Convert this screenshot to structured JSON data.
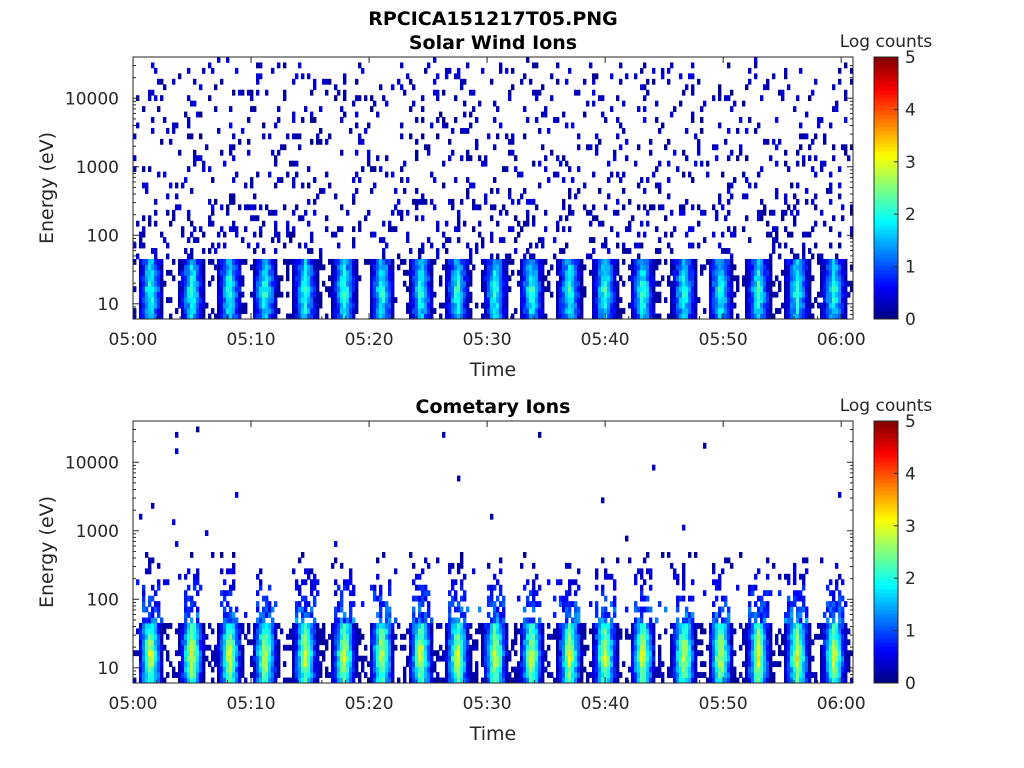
{
  "figure": {
    "title": "RPCICA151217T05.PNG"
  },
  "colors": {
    "jet_stops": [
      "#00008f",
      "#0000ff",
      "#00ffff",
      "#ffff00",
      "#ff0000",
      "#800000"
    ],
    "axis": "#262626",
    "background": "#ffffff"
  },
  "chart_data": [
    {
      "type": "heatmap",
      "title": "Solar Wind Ions",
      "xlabel": "Time",
      "ylabel": "Energy (eV)",
      "x_ticks": [
        "05:00",
        "05:10",
        "05:20",
        "05:30",
        "05:40",
        "05:50",
        "06:00"
      ],
      "y_ticks": [
        "10",
        "100",
        "1000",
        "10000"
      ],
      "y_scale": "log",
      "ylim": [
        6,
        40000
      ],
      "colorbar": {
        "label": "Log counts",
        "range": [
          0,
          5
        ],
        "ticks": [
          "0",
          "1",
          "2",
          "3",
          "4",
          "5"
        ]
      },
      "burst_times_min": [
        1.5,
        5.0,
        8.2,
        11.2,
        14.6,
        17.9,
        21.1,
        24.4,
        27.5,
        30.7,
        33.8,
        37.0,
        40.0,
        43.2,
        46.7,
        49.8,
        53.0,
        56.3,
        59.4
      ],
      "burst_peak_log_counts": 2.3,
      "burst_energy_range_eV": [
        6,
        40
      ],
      "background_energy_range_eV": [
        40,
        20000
      ],
      "background_log_counts": 0.3
    },
    {
      "type": "heatmap",
      "title": "Cometary Ions",
      "xlabel": "Time",
      "ylabel": "Energy (eV)",
      "x_ticks": [
        "05:00",
        "05:10",
        "05:20",
        "05:30",
        "05:40",
        "05:50",
        "06:00"
      ],
      "y_ticks": [
        "10",
        "100",
        "1000",
        "10000"
      ],
      "y_scale": "log",
      "ylim": [
        6,
        40000
      ],
      "colorbar": {
        "label": "Log counts",
        "range": [
          0,
          5
        ],
        "ticks": [
          "0",
          "1",
          "2",
          "3",
          "4",
          "5"
        ]
      },
      "burst_times_min": [
        1.5,
        5.0,
        8.2,
        11.2,
        14.6,
        17.9,
        21.1,
        24.4,
        27.5,
        30.7,
        33.8,
        37.0,
        40.0,
        43.2,
        46.7,
        49.8,
        53.0,
        56.3,
        59.4
      ],
      "burst_peak_log_counts": 3.2,
      "burst_energy_range_eV": [
        6,
        40
      ],
      "plume_energy_range_eV": [
        40,
        500
      ],
      "background_log_counts": 0.3
    }
  ]
}
